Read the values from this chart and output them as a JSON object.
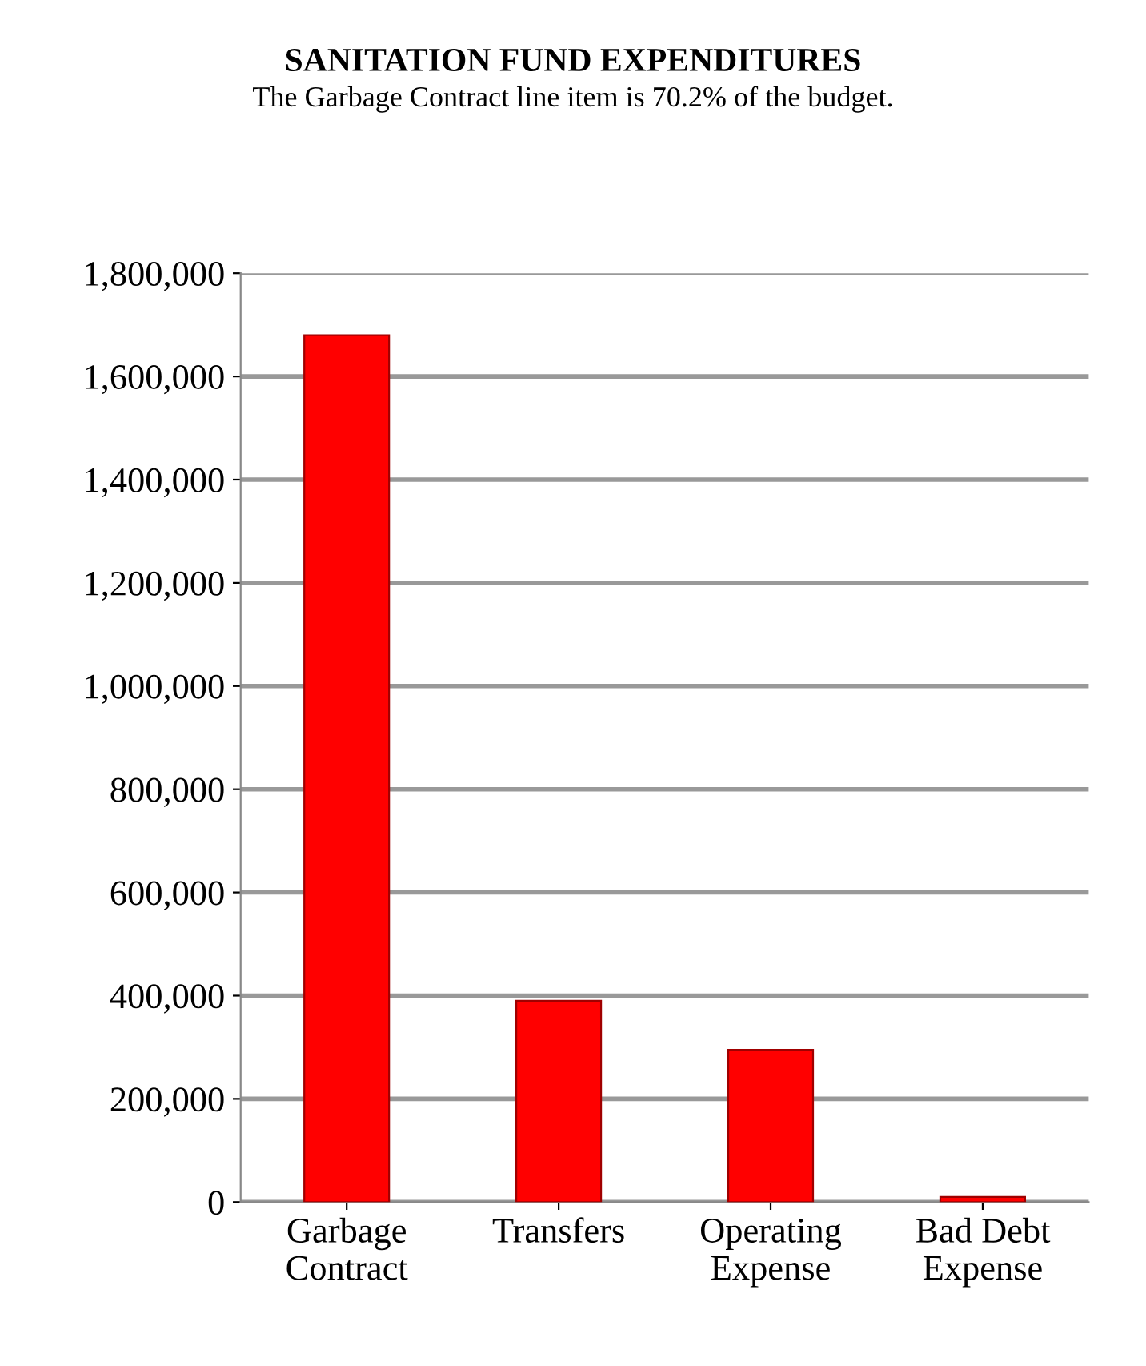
{
  "chart_data": {
    "type": "bar",
    "title": "SANITATION FUND EXPENDITURES",
    "subtitle": "The Garbage Contract line item is 70.2% of the budget.",
    "categories": [
      "Garbage\nContract",
      "Transfers",
      "Operating\nExpense",
      "Bad Debt\nExpense"
    ],
    "values": [
      1680000,
      390000,
      295000,
      10000
    ],
    "color": "#ff0000",
    "ylim": [
      0,
      1800000
    ],
    "yticks": [
      {
        "value": 0,
        "label": "0"
      },
      {
        "value": 200000,
        "label": "200,000"
      },
      {
        "value": 400000,
        "label": "400,000"
      },
      {
        "value": 600000,
        "label": "600,000"
      },
      {
        "value": 800000,
        "label": "800,000"
      },
      {
        "value": 1000000,
        "label": "1,000,000"
      },
      {
        "value": 1200000,
        "label": "1,200,000"
      },
      {
        "value": 1400000,
        "label": "1,400,000"
      },
      {
        "value": 1600000,
        "label": "1,600,000"
      },
      {
        "value": 1800000,
        "label": "1,800,000"
      }
    ],
    "grid": "y",
    "legend": false
  }
}
